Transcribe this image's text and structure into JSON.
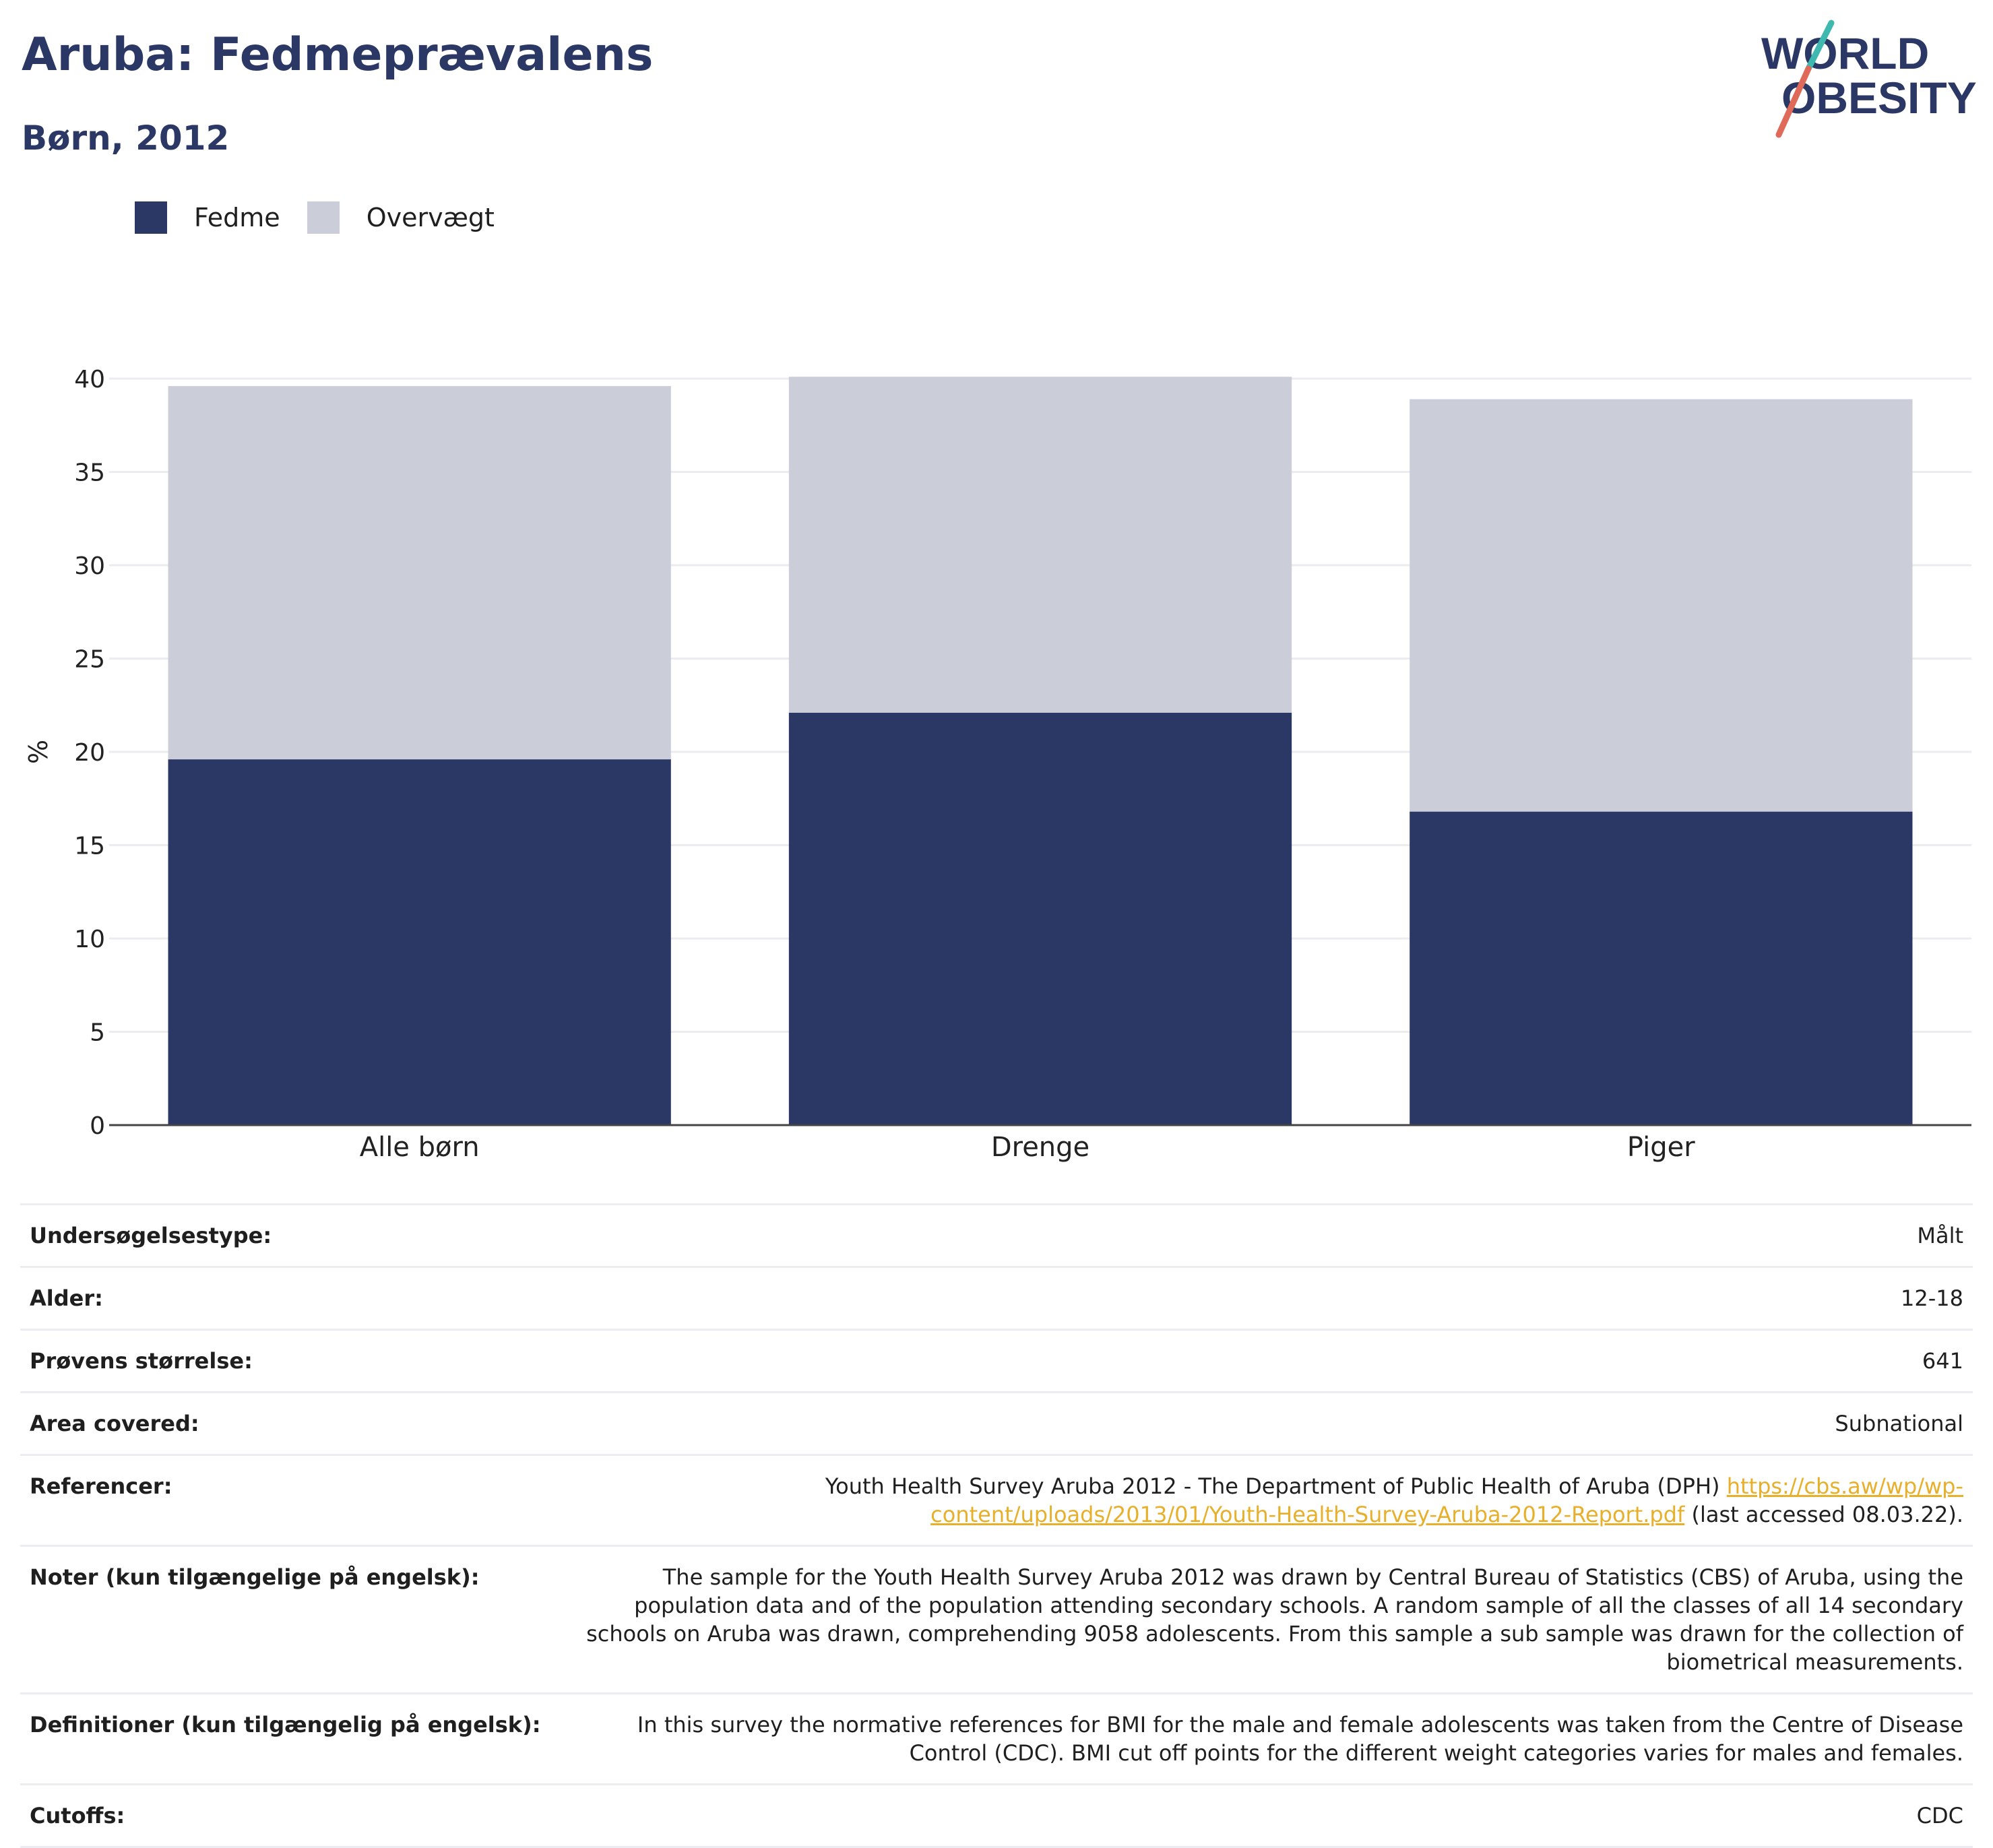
{
  "header": {
    "title": "Aruba: Fedmeprævalens",
    "subtitle": "Børn, 2012"
  },
  "logo": {
    "line1": "WORLD",
    "line2": "OBESITY",
    "colors": {
      "text": "#2b3764",
      "slash_red": "#e06a5a",
      "slash_teal": "#3fb8b0"
    }
  },
  "legend": {
    "items": [
      {
        "label": "Fedme",
        "color": "#2b3764"
      },
      {
        "label": "Overvægt",
        "color": "#cbcdd9"
      }
    ]
  },
  "chart_data": {
    "type": "bar",
    "stacked": true,
    "categories": [
      "Alle børn",
      "Drenge",
      "Piger"
    ],
    "series": [
      {
        "name": "Fedme",
        "color": "#2b3764",
        "values": [
          19.6,
          22.1,
          16.8
        ]
      },
      {
        "name": "Overvægt",
        "color": "#cbcdd9",
        "values": [
          20.0,
          18.0,
          22.1
        ]
      }
    ],
    "ylabel": "%",
    "xlabel": "",
    "ylim": [
      0,
      40
    ],
    "yticks": [
      0,
      5,
      10,
      15,
      20,
      25,
      30,
      35,
      40
    ],
    "grid": true,
    "legend_position": "top-left"
  },
  "table": {
    "rows": [
      {
        "key": "Undersøgelsestype:",
        "value": "Målt"
      },
      {
        "key": "Alder:",
        "value": "12-18"
      },
      {
        "key": "Prøvens størrelse:",
        "value": "641"
      },
      {
        "key": "Area covered:",
        "value": "Subnational"
      },
      {
        "key": "Referencer:",
        "value_prefix": "Youth Health Survey Aruba 2012 - The Department of Public Health of Aruba (DPH) ",
        "link": "https://cbs.aw/wp/wp-content/uploads/2013/01/Youth-Health-Survey-Aruba-2012-Report.pdf",
        "value_suffix": " (last accessed 08.03.22)."
      },
      {
        "key": "Noter (kun tilgængelige på engelsk):",
        "value": "The sample for the Youth Health Survey Aruba 2012 was drawn by Central Bureau of Statistics (CBS) of Aruba, using the population data and of the population attending secondary schools. A random sample of all the classes of all 14 secondary schools on Aruba was drawn, comprehending 9058 adolescents. From this sample a sub sample was drawn for the collection of biometrical measurements."
      },
      {
        "key": "Definitioner (kun tilgængelig på engelsk):",
        "value": "In this survey the normative references for BMI for the male and female adolescents was taken from the Centre of Disease Control (CDC). BMI cut off points for the different weight categories varies for males and females."
      },
      {
        "key": "Cutoffs:",
        "value": "CDC"
      }
    ]
  }
}
